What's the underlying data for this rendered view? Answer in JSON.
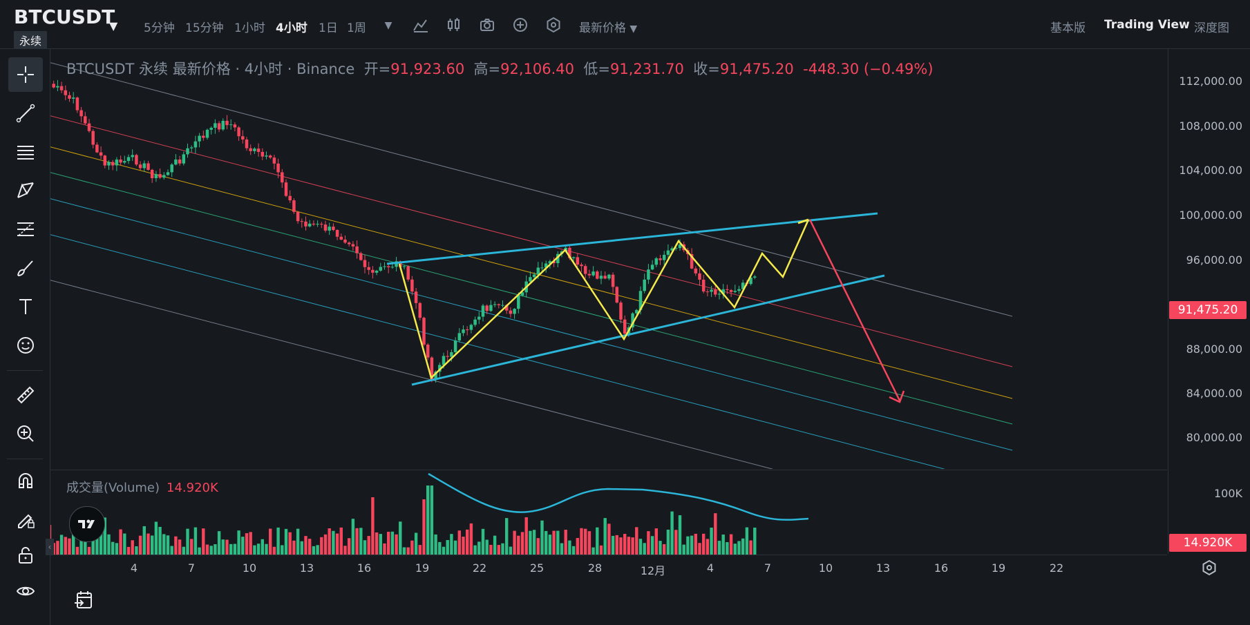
{
  "header": {
    "symbol": "BTCUSDT",
    "contract_type": "永续",
    "timeframes": [
      {
        "label": "5分钟",
        "active": false
      },
      {
        "label": "15分钟",
        "active": false
      },
      {
        "label": "1小时",
        "active": false
      },
      {
        "label": "4小时",
        "active": true
      },
      {
        "label": "1日",
        "active": false
      },
      {
        "label": "1周",
        "active": false
      }
    ],
    "price_type": "最新价格",
    "views": [
      {
        "label": "基本版",
        "active": false
      },
      {
        "label": "Trading View",
        "active": true
      },
      {
        "label": "深度图",
        "active": false
      }
    ]
  },
  "legend": {
    "title": "BTCUSDT 永续 最新价格 · 4小时 · Binance",
    "open_label": "开=",
    "open": "91,923.60",
    "high_label": "高=",
    "high": "92,106.40",
    "low_label": "低=",
    "low": "91,231.70",
    "close_label": "收=",
    "close": "91,475.20",
    "change": "-448.30 (−0.49%)"
  },
  "volume_legend": {
    "label": "成交量(Volume)",
    "value": "14.920K"
  },
  "price_axis": {
    "ticks": [
      "112,000.00",
      "108,000.00",
      "104,000.00",
      "100,000.00",
      "96,000.00",
      "88,000.00",
      "84,000.00",
      "80,000.00"
    ],
    "last_price": "91,475.20"
  },
  "volume_axis": {
    "ticks": [
      "100K"
    ],
    "last_volume": "14.920K"
  },
  "time_axis": {
    "ticks": [
      "4",
      "7",
      "10",
      "13",
      "16",
      "19",
      "22",
      "25",
      "28",
      "12月",
      "4",
      "7",
      "10",
      "13",
      "16",
      "19",
      "22"
    ]
  },
  "colors": {
    "up": "#2EBD85",
    "down": "#F6465D",
    "background": "#161A1E",
    "channel": "#2BB5D8",
    "zigzag": "#F5E94B",
    "arrow": "#F6465D"
  },
  "sidebar": {
    "tools": [
      "crosshair-icon",
      "trendline-icon",
      "horizontal-lines-icon",
      "pattern-icon",
      "fib-icon",
      "brush-icon",
      "text-icon",
      "emoji-icon",
      "ruler-icon",
      "zoom-in-icon",
      "magnet-icon",
      "lock-pencil-icon",
      "lock-icon",
      "eye-icon"
    ]
  }
}
